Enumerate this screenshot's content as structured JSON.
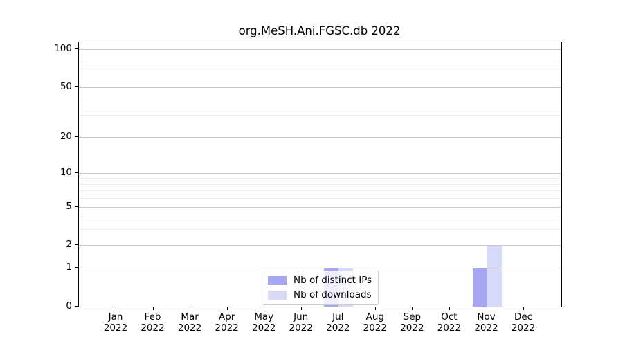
{
  "chart_data": {
    "type": "bar",
    "title": "org.MeSH.Ani.FGSC.db 2022",
    "categories": [
      {
        "month": "Jan",
        "year": "2022"
      },
      {
        "month": "Feb",
        "year": "2022"
      },
      {
        "month": "Mar",
        "year": "2022"
      },
      {
        "month": "Apr",
        "year": "2022"
      },
      {
        "month": "May",
        "year": "2022"
      },
      {
        "month": "Jun",
        "year": "2022"
      },
      {
        "month": "Jul",
        "year": "2022"
      },
      {
        "month": "Aug",
        "year": "2022"
      },
      {
        "month": "Sep",
        "year": "2022"
      },
      {
        "month": "Oct",
        "year": "2022"
      },
      {
        "month": "Nov",
        "year": "2022"
      },
      {
        "month": "Dec",
        "year": "2022"
      }
    ],
    "series": [
      {
        "name": "Nb of distinct IPs",
        "color": "#a6a6f3",
        "values": [
          0,
          0,
          0,
          0,
          0,
          0,
          1,
          0,
          0,
          0,
          1,
          0
        ]
      },
      {
        "name": "Nb of downloads",
        "color": "#d8d8f8",
        "values": [
          0,
          0,
          0,
          0,
          0,
          0,
          1,
          0,
          0,
          0,
          2,
          0
        ]
      }
    ],
    "y_axis": {
      "scale": "log1p",
      "ticks": [
        0,
        1,
        2,
        5,
        10,
        20,
        50,
        100
      ],
      "minor_gridlines": [
        3,
        4,
        6,
        7,
        8,
        9,
        30,
        40,
        60,
        70,
        80,
        90
      ],
      "ylim": [
        0,
        113
      ]
    },
    "legend": {
      "position": "lower center",
      "entries": [
        "Nb of distinct IPs",
        "Nb of downloads"
      ]
    },
    "grid": {
      "major_color": "#c8c8c8",
      "minor_color": "#ececec"
    },
    "axis_color": "#000000",
    "background_color": "#ffffff"
  }
}
